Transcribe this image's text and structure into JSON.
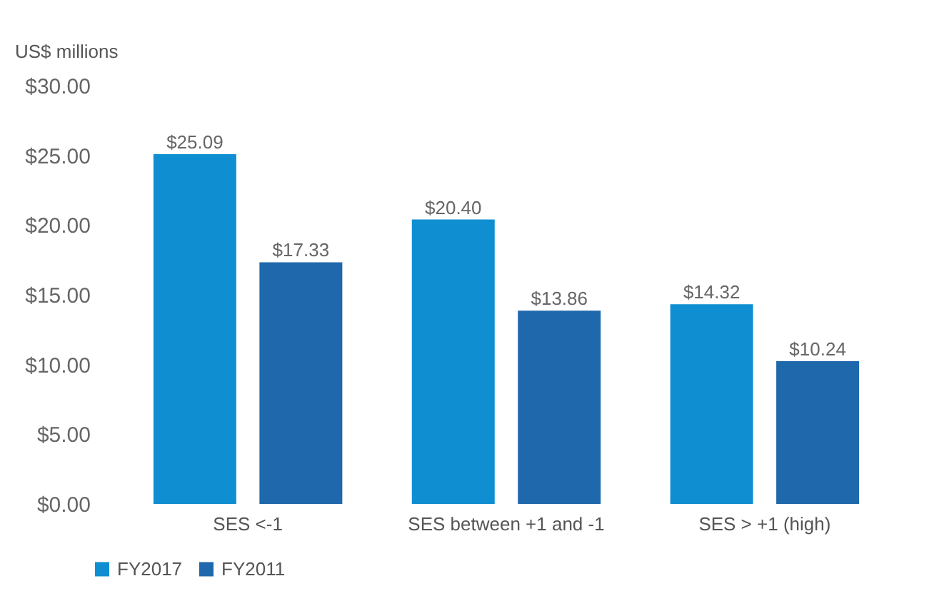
{
  "chart_data": {
    "type": "bar",
    "ylabel": "US$ millions",
    "categories": [
      "SES <-1",
      "SES between +1 and -1",
      "SES > +1 (high)"
    ],
    "series": [
      {
        "name": "FY2017",
        "color": "#0f8fd2",
        "values": [
          25.09,
          20.4,
          14.32
        ],
        "value_labels": [
          "$25.09",
          "$20.40",
          "$14.32"
        ]
      },
      {
        "name": "FY2011",
        "color": "#1f68ac",
        "values": [
          17.33,
          13.86,
          10.24
        ],
        "value_labels": [
          "$17.33",
          "$13.86",
          "$10.24"
        ]
      }
    ],
    "ylim": [
      0,
      30
    ],
    "yticks": [
      {
        "value": 0,
        "label": "$0.00"
      },
      {
        "value": 5,
        "label": "$5.00"
      },
      {
        "value": 10,
        "label": "$10.00"
      },
      {
        "value": 15,
        "label": "$15.00"
      },
      {
        "value": 20,
        "label": "$20.00"
      },
      {
        "value": 25,
        "label": "$25.00"
      },
      {
        "value": 30,
        "label": "$30.00"
      }
    ],
    "grid": false,
    "legend": "bottom"
  }
}
